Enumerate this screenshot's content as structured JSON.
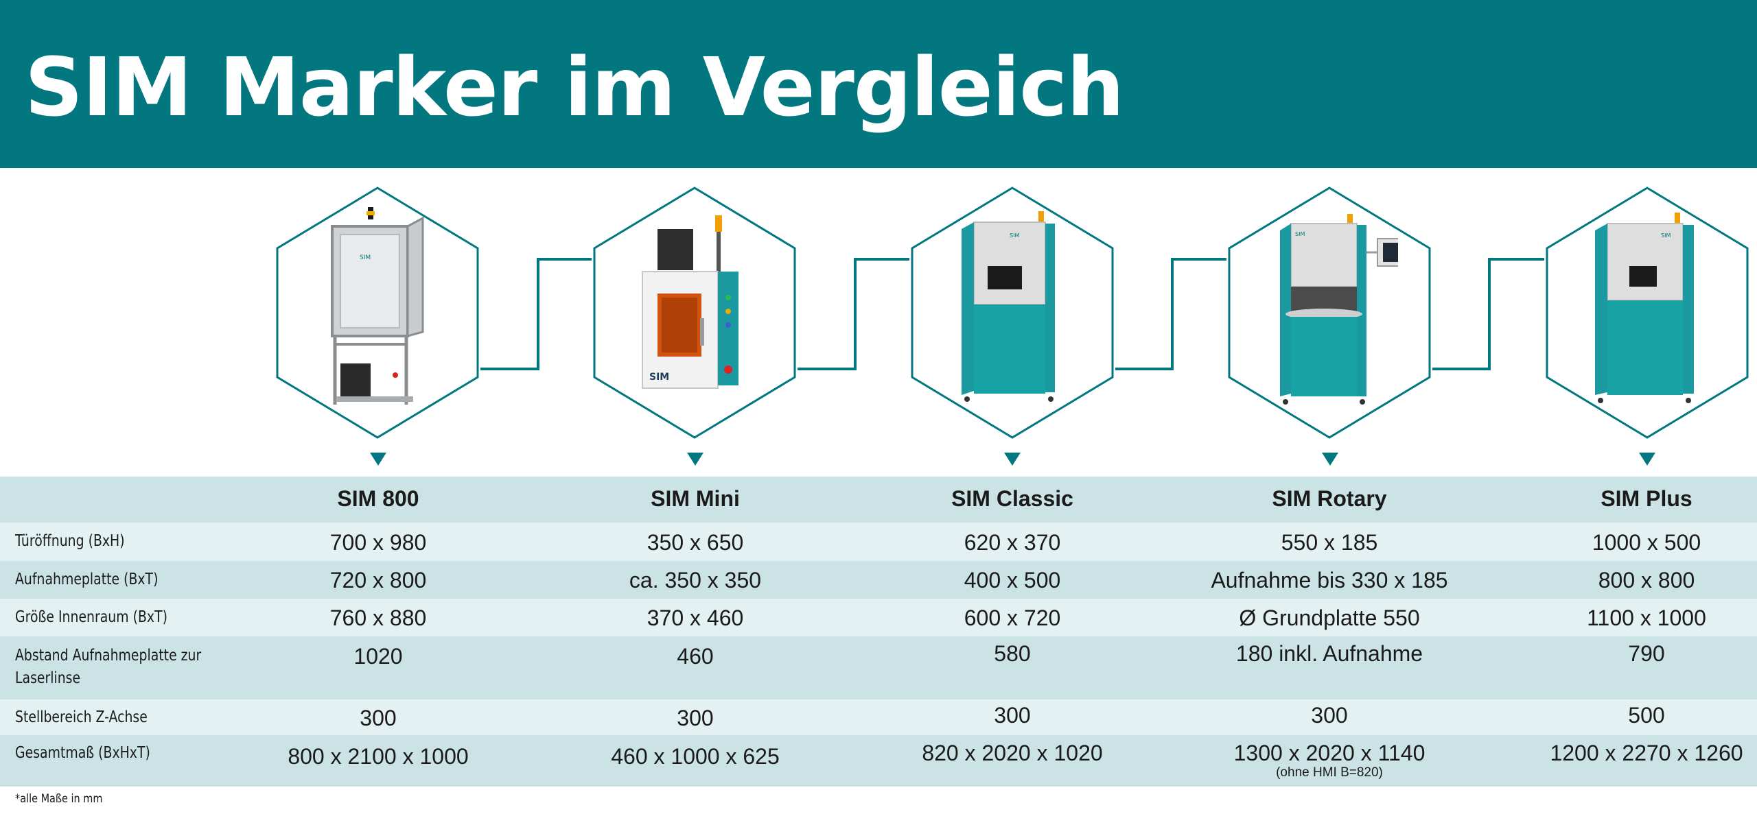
{
  "header": {
    "title": "SIM Marker im Vergleich"
  },
  "colors": {
    "brand_teal": "#02777f",
    "row_light": "#e4f1f3",
    "row_dark": "#cce3e6"
  },
  "products": [
    {
      "name": "SIM 800",
      "image_icon": "sim-800-machine-icon",
      "machine_badge": "SIM"
    },
    {
      "name": "SIM Mini",
      "image_icon": "sim-mini-machine-icon",
      "machine_badge": "SIM"
    },
    {
      "name": "SIM Classic",
      "image_icon": "sim-classic-machine-icon",
      "machine_badge": "SIM"
    },
    {
      "name": "SIM Rotary",
      "image_icon": "sim-rotary-machine-icon",
      "machine_badge": "SIM"
    },
    {
      "name": "SIM Plus",
      "image_icon": "sim-plus-machine-icon",
      "machine_badge": "SIM"
    }
  ],
  "table": {
    "rows": [
      {
        "label": "Türöffnung (BxH)",
        "values": [
          "700 x 980",
          "350 x 650",
          "620 x 370",
          "550 x 185",
          "1000 x 500"
        ]
      },
      {
        "label": "Aufnahmeplatte (BxT)",
        "values": [
          "720 x 800",
          "ca. 350 x 350",
          "400 x 500",
          "Aufnahme bis 330 x 185",
          "800 x 800"
        ]
      },
      {
        "label": "Größe Innenraum (BxT)",
        "values": [
          "760 x 880",
          "370 x 460",
          "600 x 720",
          "Ø Grundplatte 550",
          "1100 x 1000"
        ]
      },
      {
        "label": "Abstand Aufnahmeplatte zur Laserlinse",
        "values": [
          "1020",
          "460",
          "580",
          "180 inkl. Aufnahme",
          "790"
        ]
      },
      {
        "label": "Stellbereich  Z-Achse",
        "values": [
          "300",
          "300",
          "300",
          "300",
          "500"
        ]
      },
      {
        "label": "Gesamtmaß (BxHxT)",
        "values": [
          "800 x 2100 x 1000",
          "460 x 1000 x 625",
          "820 x 2020 x 1020",
          "1300 x 2020 x 1140",
          "1200 x 2270 x 1260"
        ],
        "notes": [
          "",
          "",
          "",
          "(ohne HMI B=820)",
          ""
        ]
      }
    ]
  },
  "footnote": "*alle Maße in mm"
}
